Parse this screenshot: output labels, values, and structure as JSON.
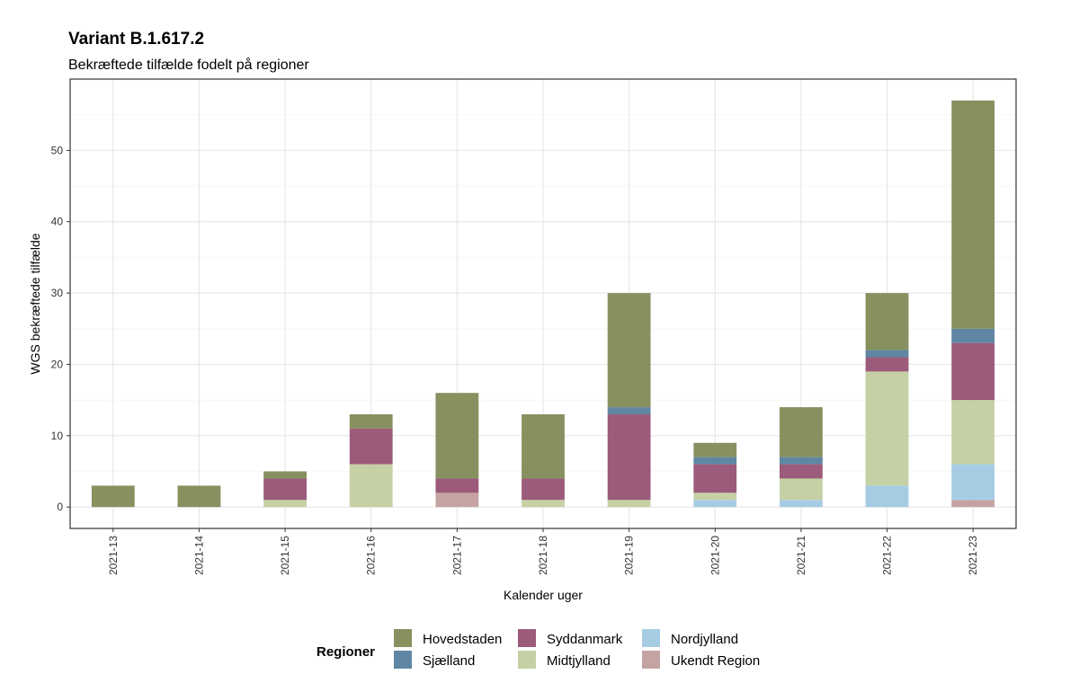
{
  "title": "Variant B.1.617.2",
  "subtitle": "Bekræftede tilfælde fodelt på regioner",
  "chart_data": {
    "type": "bar",
    "stacked": true,
    "xlabel": "Kalender uger",
    "ylabel": "WGS bekræftede tilfælde",
    "categories": [
      "2021-13",
      "2021-14",
      "2021-15",
      "2021-16",
      "2021-17",
      "2021-18",
      "2021-19",
      "2021-20",
      "2021-21",
      "2021-22",
      "2021-23"
    ],
    "ylim": [
      -3,
      60
    ],
    "yticks": [
      0,
      10,
      20,
      30,
      40,
      50
    ],
    "grid": true,
    "legend_position": "bottom",
    "legend_title": "Regioner",
    "series": [
      {
        "name": "Ukendt Region",
        "color": "#c5a3a3",
        "values": [
          0,
          0,
          0,
          0,
          2,
          0,
          0,
          0,
          0,
          0,
          1
        ]
      },
      {
        "name": "Nordjylland",
        "color": "#a6cce3",
        "values": [
          0,
          0,
          0,
          0,
          0,
          0,
          0,
          1,
          1,
          3,
          5
        ]
      },
      {
        "name": "Midtjylland",
        "color": "#c5d1a5",
        "values": [
          0,
          0,
          1,
          6,
          0,
          1,
          1,
          1,
          3,
          16,
          9
        ]
      },
      {
        "name": "Syddanmark",
        "color": "#9c5b7a",
        "values": [
          0,
          0,
          3,
          5,
          2,
          3,
          12,
          4,
          2,
          2,
          8
        ]
      },
      {
        "name": "Sjælland",
        "color": "#5f87a3",
        "values": [
          0,
          0,
          0,
          0,
          0,
          0,
          1,
          1,
          1,
          1,
          2
        ]
      },
      {
        "name": "Hovedstaden",
        "color": "#879160",
        "values": [
          3,
          3,
          1,
          2,
          12,
          9,
          16,
          2,
          7,
          8,
          32
        ]
      }
    ],
    "legend_order": [
      "Hovedstaden",
      "Sjælland",
      "Syddanmark",
      "Midtjylland",
      "Nordjylland",
      "Ukendt Region"
    ]
  }
}
